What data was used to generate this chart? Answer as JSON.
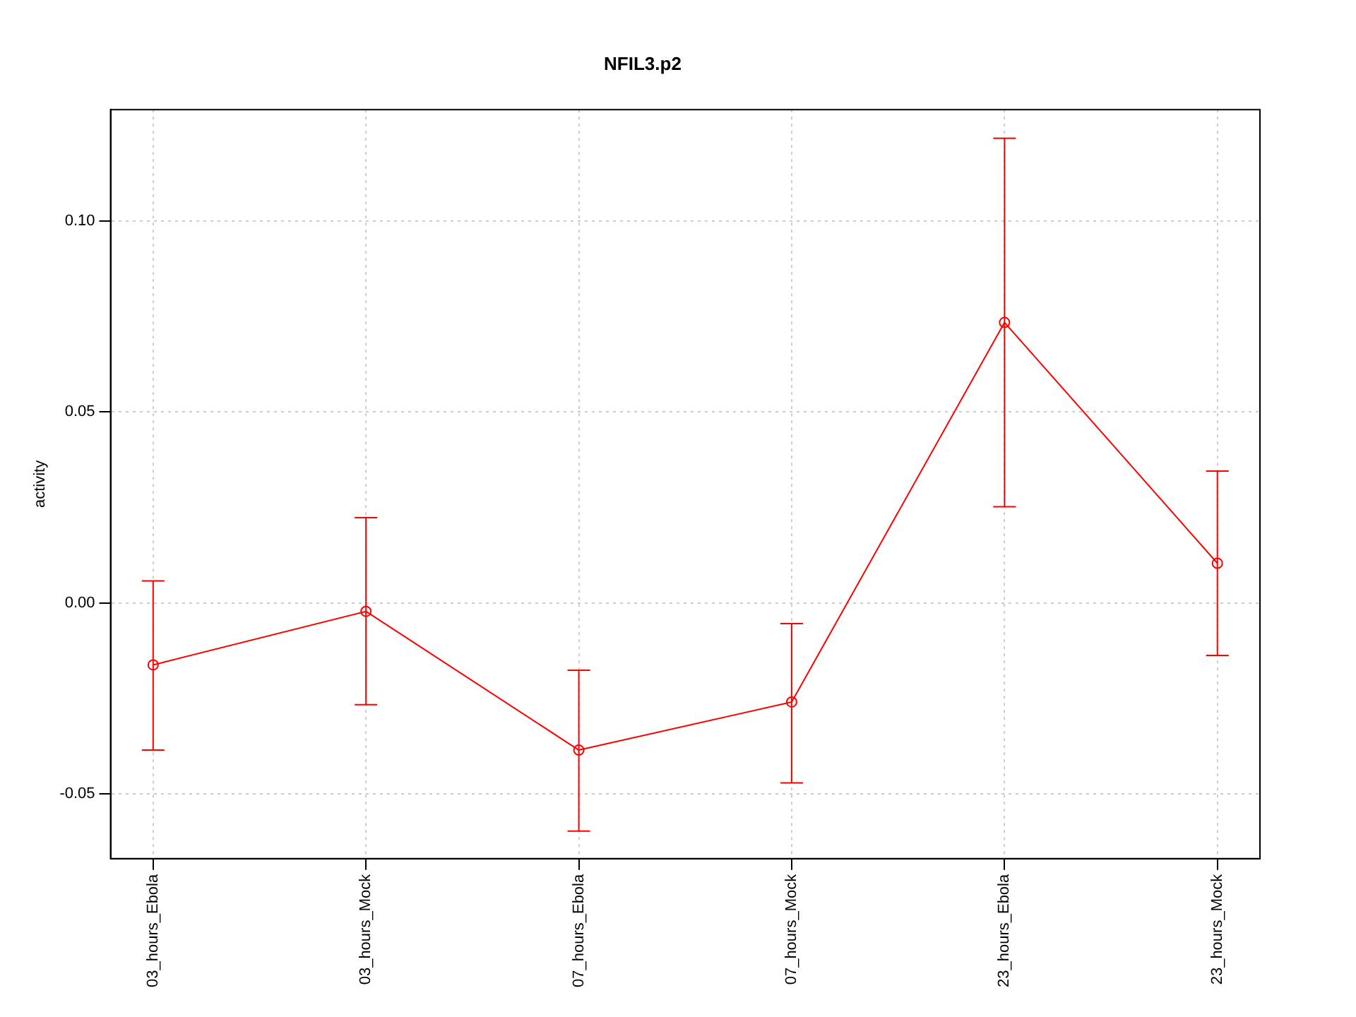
{
  "chart_data": {
    "type": "line",
    "title": "NFIL3.p2",
    "ylabel": "activity",
    "categories": [
      "03_hours_Ebola",
      "03_hours_Mock",
      "07_hours_Ebola",
      "07_hours_Mock",
      "23_hours_Ebola",
      "23_hours_Mock"
    ],
    "series": [
      {
        "color": "#ff0000",
        "values": [
          -0.0162,
          -0.0022,
          -0.0385,
          -0.0259,
          0.0734,
          0.0104
        ],
        "errors": [
          [
            -0.0385,
            0.0058
          ],
          [
            -0.0266,
            0.0223
          ],
          [
            -0.0597,
            -0.0176
          ],
          [
            -0.0471,
            -0.0054
          ],
          [
            0.0252,
            0.1216
          ],
          [
            -0.0137,
            0.0345
          ]
        ]
      }
    ],
    "ylim": [
      -0.0669,
      0.1291
    ],
    "yticks": [
      {
        "value": -0.05,
        "label": "-0.05"
      },
      {
        "value": 0,
        "label": "0.00"
      },
      {
        "value": 0.05,
        "label": "0.05"
      },
      {
        "value": 0.1,
        "label": "0.10"
      }
    ],
    "grid": true,
    "marker": "circle",
    "line_style": "solid",
    "legend": false
  }
}
